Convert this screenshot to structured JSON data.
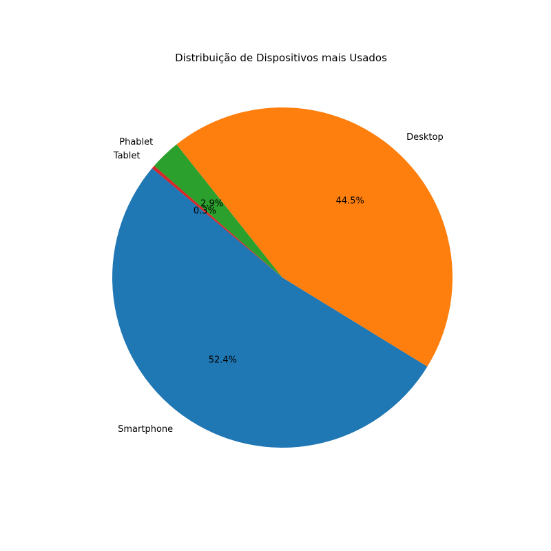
{
  "chart_data": {
    "type": "pie",
    "title": "Distribuição de Dispositivos mais Usados",
    "categories": [
      "Smartphone",
      "Desktop",
      "Phablet",
      "Tablet"
    ],
    "values": [
      52.4,
      44.5,
      2.9,
      0.3
    ],
    "percent_labels": [
      "52.4%",
      "44.5%",
      "2.9%",
      "0.3%"
    ],
    "colors": [
      "#1f77b4",
      "#ff7f0e",
      "#2ca02c",
      "#d62728"
    ],
    "start_angle_deg": 140,
    "direction": "counterclockwise",
    "legend": "none"
  }
}
